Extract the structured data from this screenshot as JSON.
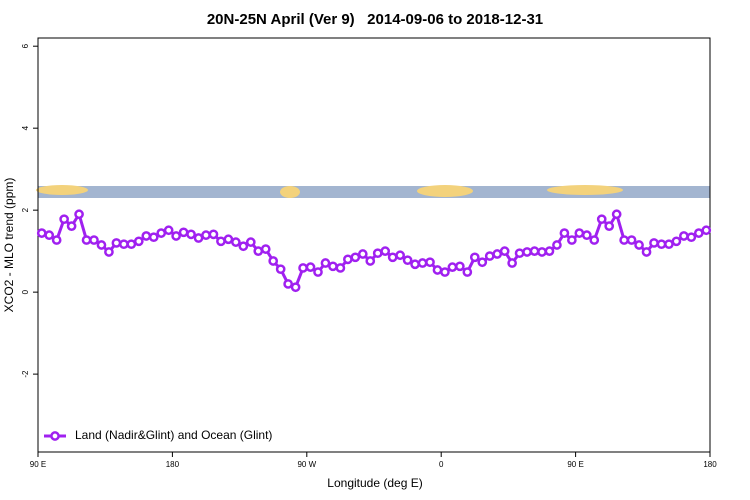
{
  "chart_data": {
    "type": "line",
    "title": "20N-25N April (Ver 9)   2014-09-06 to 2018-12-31",
    "x_label": "Longitude (deg E)",
    "y_label": "XCO2 - MLO trend (ppm)",
    "xlim": [
      90,
      540
    ],
    "ylim": [
      -3.9,
      6.2
    ],
    "xticks": [
      {
        "value": 90,
        "label": "90 E"
      },
      180,
      {
        "value": 270,
        "label": "90 W"
      },
      {
        "value": 360,
        "label": "0"
      },
      {
        "value": 450,
        "label": "90 E"
      },
      {
        "value": 540,
        "label": "180"
      }
    ],
    "yticks": [
      -2,
      0,
      2,
      4,
      6
    ],
    "legend_position": "bottom-left",
    "x": [
      92.5,
      97.5,
      102.5,
      107.5,
      112.5,
      117.5,
      122.5,
      127.5,
      132.5,
      137.5,
      142.5,
      147.5,
      152.5,
      157.5,
      162.5,
      167.5,
      172.5,
      177.5,
      182.5,
      187.5,
      192.5,
      197.5,
      202.5,
      207.5,
      212.5,
      217.5,
      222.5,
      227.5,
      232.5,
      237.5,
      242.5,
      247.5,
      252.5,
      257.5,
      262.5,
      267.5,
      272.5,
      277.5,
      282.5,
      287.5,
      292.5,
      297.5,
      302.5,
      307.5,
      312.5,
      317.5,
      322.5,
      327.5,
      332.5,
      337.5,
      342.5,
      347.5,
      352.5,
      357.5,
      362.5,
      367.5,
      372.5,
      377.5,
      382.5,
      387.5,
      392.5,
      397.5,
      402.5,
      407.5,
      412.5,
      417.5,
      422.5,
      427.5,
      432.5,
      437.5,
      442.5,
      447.5,
      452.5,
      457.5,
      462.5,
      467.5,
      472.5,
      477.5,
      482.5,
      487.5,
      492.5,
      497.5,
      502.5,
      507.5,
      512.5,
      517.5,
      522.5,
      527.5,
      532.5,
      537.5
    ],
    "series": [
      {
        "name": "Land (Nadir&Glint) and Ocean (Glint)",
        "color": "#a020f0",
        "values": [
          1.44,
          1.39,
          1.27,
          1.78,
          1.61,
          1.9,
          1.27,
          1.27,
          1.15,
          0.98,
          1.2,
          1.17,
          1.17,
          1.24,
          1.37,
          1.34,
          1.44,
          1.51,
          1.37,
          1.46,
          1.41,
          1.32,
          1.39,
          1.41,
          1.24,
          1.29,
          1.22,
          1.12,
          1.22,
          1.0,
          1.05,
          0.76,
          0.56,
          0.2,
          0.12,
          0.59,
          0.61,
          0.49,
          0.71,
          0.63,
          0.59,
          0.8,
          0.85,
          0.93,
          0.76,
          0.95,
          1.0,
          0.85,
          0.9,
          0.78,
          0.68,
          0.71,
          0.73,
          0.54,
          0.49,
          0.61,
          0.63,
          0.49,
          0.85,
          0.73,
          0.88,
          0.93,
          1.0,
          0.71,
          0.95,
          0.98,
          1.0,
          0.98,
          1.0,
          1.15,
          1.44,
          1.27,
          1.44,
          1.39,
          1.27,
          1.78,
          1.61,
          1.9,
          1.27,
          1.27,
          1.15,
          0.98,
          1.2,
          1.17,
          1.17,
          1.24,
          1.37,
          1.34,
          1.44,
          1.51
        ]
      }
    ]
  }
}
